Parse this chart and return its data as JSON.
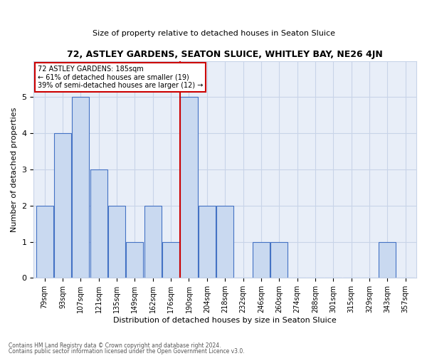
{
  "title": "72, ASTLEY GARDENS, SEATON SLUICE, WHITLEY BAY, NE26 4JN",
  "subtitle": "Size of property relative to detached houses in Seaton Sluice",
  "xlabel": "Distribution of detached houses by size in Seaton Sluice",
  "ylabel": "Number of detached properties",
  "footnote1": "Contains HM Land Registry data © Crown copyright and database right 2024.",
  "footnote2": "Contains public sector information licensed under the Open Government Licence v3.0.",
  "bar_labels": [
    "79sqm",
    "93sqm",
    "107sqm",
    "121sqm",
    "135sqm",
    "149sqm",
    "162sqm",
    "176sqm",
    "190sqm",
    "204sqm",
    "218sqm",
    "232sqm",
    "246sqm",
    "260sqm",
    "274sqm",
    "288sqm",
    "301sqm",
    "315sqm",
    "329sqm",
    "343sqm",
    "357sqm"
  ],
  "bar_values": [
    2,
    4,
    5,
    3,
    2,
    1,
    2,
    1,
    5,
    2,
    2,
    0,
    1,
    1,
    0,
    0,
    0,
    0,
    0,
    1,
    0
  ],
  "bar_color": "#c9d9f0",
  "bar_edge_color": "#4472c4",
  "marker_bin": 8,
  "marker_label": "72 ASTLEY GARDENS: 185sqm",
  "annotation_line1": "← 61% of detached houses are smaller (19)",
  "annotation_line2": "39% of semi-detached houses are larger (12) →",
  "marker_color": "#cc0000",
  "ylim": [
    0,
    6
  ],
  "yticks": [
    0,
    1,
    2,
    3,
    4,
    5,
    6
  ],
  "grid_color": "#c8d4e8",
  "bg_color": "#e8eef8"
}
